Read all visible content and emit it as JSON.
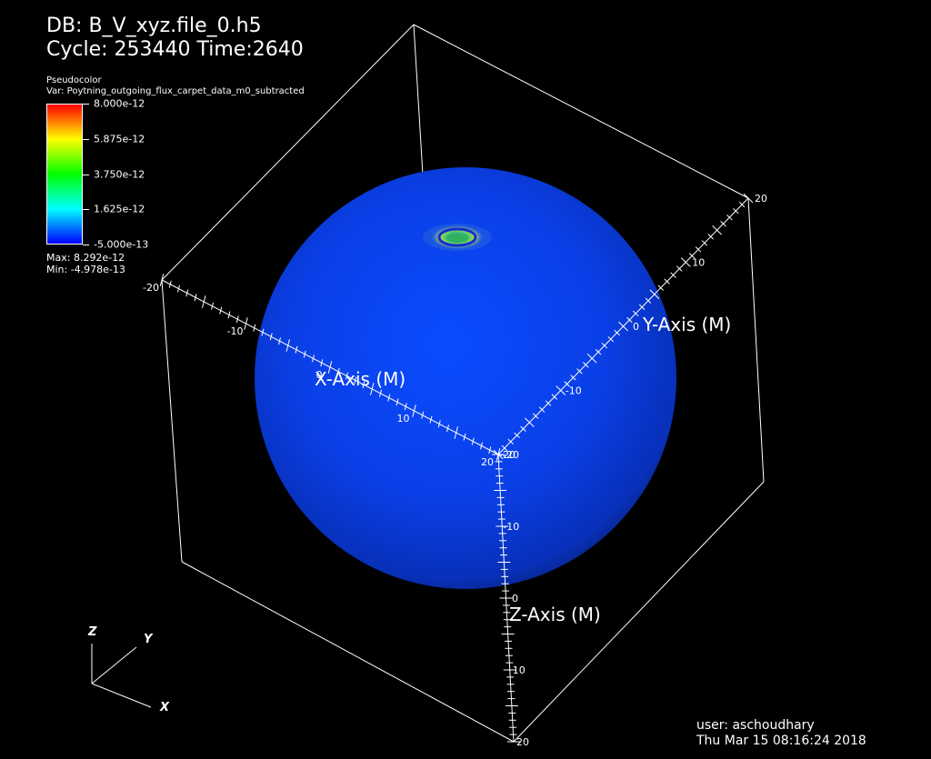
{
  "header": {
    "db": "DB: B_V_xyz.file_0.h5",
    "cycle": "Cycle: 253440   Time:2640"
  },
  "legend": {
    "kind": "Pseudocolor",
    "var": "Var: Poytning_outgoing_flux_carpet_data_m0_subtracted",
    "ticks": [
      "8.000e-12",
      "5.875e-12",
      "3.750e-12",
      "1.625e-12",
      "-5.000e-13"
    ],
    "max": "Max: 8.292e-12",
    "min": "Min: -4.978e-13",
    "colors": [
      "#ff0000",
      "#ffff00",
      "#00ff00",
      "#00ffff",
      "#0000ff"
    ]
  },
  "axes": {
    "x_title": "X-Axis (M)",
    "y_title": "Y-Axis (M)",
    "z_title": "Z-Axis (M)",
    "x_ticks": [
      "-20",
      "-10",
      "0",
      "10",
      "20"
    ],
    "y_ticks": [
      "-20",
      "-10",
      "0",
      "10",
      "20"
    ],
    "z_ticks": [
      "-20",
      "-10",
      "0",
      "10",
      "20"
    ]
  },
  "triad": {
    "x": "X",
    "y": "Y",
    "z": "Z"
  },
  "footer": {
    "user": "user: aschoudhary",
    "date": "Thu Mar 15 08:16:24 2018"
  },
  "sphere_color": "#0a3df0"
}
